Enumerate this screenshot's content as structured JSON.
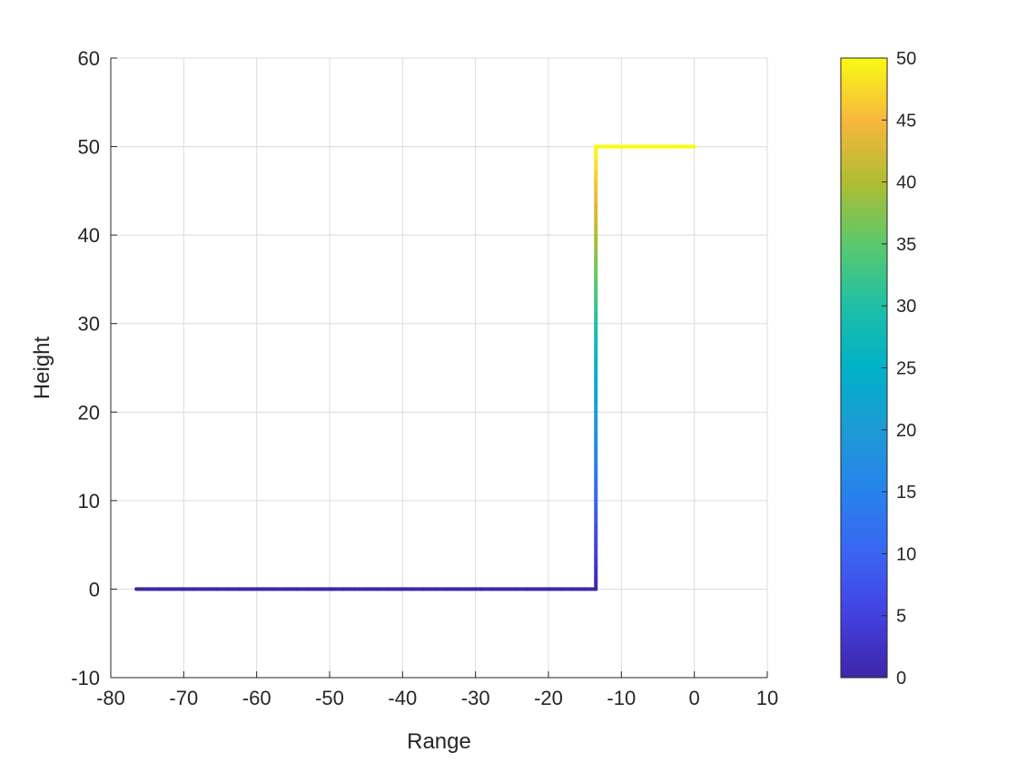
{
  "chart_data": {
    "type": "line",
    "title": "",
    "xlabel": "Range",
    "ylabel": "Height",
    "xlim": [
      -80,
      10
    ],
    "ylim": [
      -10,
      60
    ],
    "xticks": [
      -80,
      -70,
      -60,
      -50,
      -40,
      -30,
      -20,
      -10,
      0,
      10
    ],
    "yticks": [
      -10,
      0,
      10,
      20,
      30,
      40,
      50,
      60
    ],
    "grid": true,
    "series": [
      {
        "x": [
          -76.5,
          -13.5,
          -13.5,
          0
        ],
        "y": [
          0,
          0,
          50,
          50
        ],
        "color_values": [
          0,
          0,
          50,
          50
        ]
      }
    ],
    "colorbar": {
      "colormap": "parula",
      "limits": [
        0,
        50
      ],
      "ticks": [
        0,
        5,
        10,
        15,
        20,
        25,
        30,
        35,
        40,
        45,
        50
      ],
      "colors": [
        "#3e26a8",
        "#4341e0",
        "#3b64f3",
        "#2683eb",
        "#1e9ad7",
        "#00b1c8",
        "#1fbfa6",
        "#5bc86c",
        "#b0bd32",
        "#f7b73c",
        "#f9fb14"
      ]
    }
  }
}
